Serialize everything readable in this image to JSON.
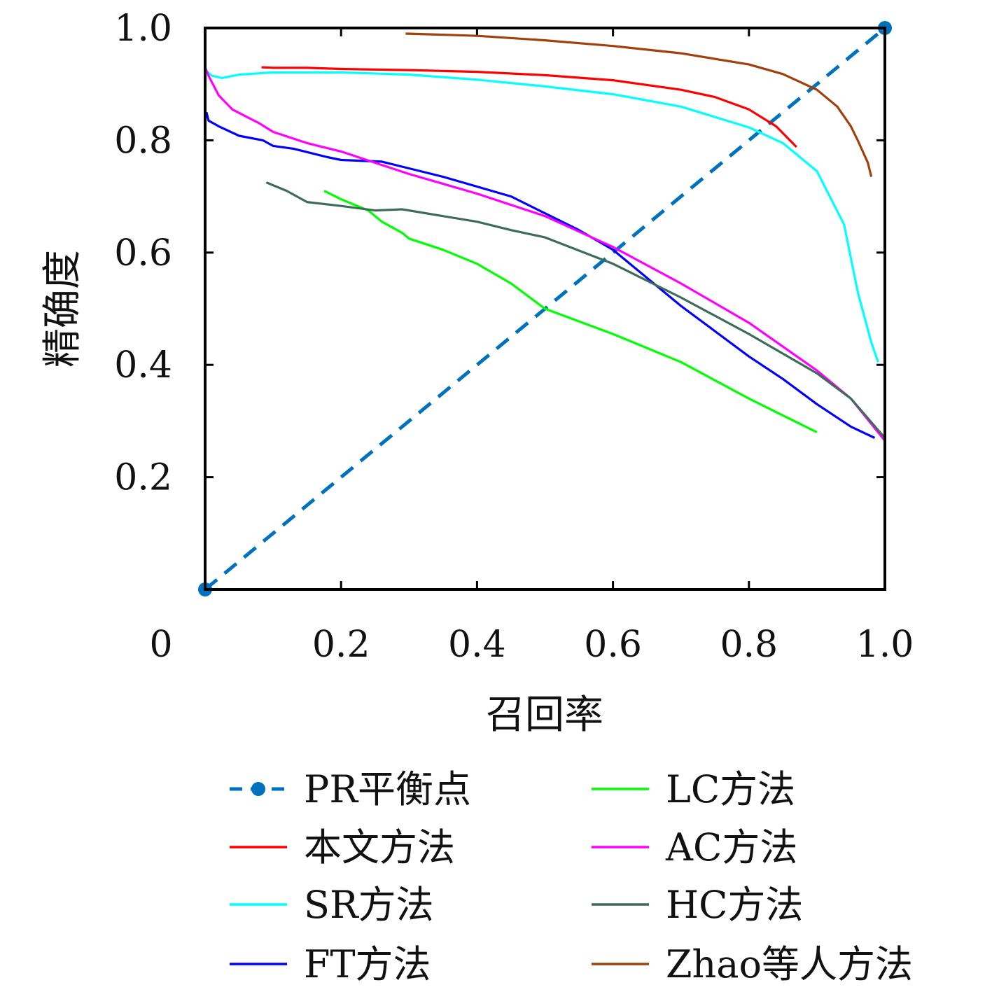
{
  "chart_data": {
    "type": "line",
    "title": "",
    "xlabel": "召回率",
    "ylabel": "精确度",
    "xlim": [
      0,
      1
    ],
    "ylim": [
      0,
      1
    ],
    "x_ticks": [
      {
        "value": 0,
        "label": "0"
      },
      {
        "value": 0.2,
        "label": "0.2"
      },
      {
        "value": 0.4,
        "label": "0.4"
      },
      {
        "value": 0.6,
        "label": "0.6"
      },
      {
        "value": 0.8,
        "label": "0.8"
      },
      {
        "value": 1.0,
        "label": "1.0"
      }
    ],
    "y_ticks": [
      {
        "value": 0.2,
        "label": "0.2"
      },
      {
        "value": 0.4,
        "label": "0.4"
      },
      {
        "value": 0.6,
        "label": "0.6"
      },
      {
        "value": 0.8,
        "label": "0.8"
      },
      {
        "value": 1.0,
        "label": "1.0"
      }
    ],
    "grid": false,
    "legend_position": "bottom",
    "series": [
      {
        "name": "PR平衡点",
        "color": "#0072BD",
        "style": "dashed-marker",
        "x": [
          0,
          1
        ],
        "y": [
          0,
          1
        ]
      },
      {
        "name": "本文方法",
        "color": "#FF0000",
        "style": "solid",
        "x": [
          0.083,
          0.1,
          0.15,
          0.2,
          0.3,
          0.4,
          0.5,
          0.6,
          0.7,
          0.75,
          0.8,
          0.84,
          0.87
        ],
        "y": [
          0.93,
          0.929,
          0.929,
          0.927,
          0.925,
          0.922,
          0.916,
          0.907,
          0.89,
          0.877,
          0.855,
          0.825,
          0.788
        ]
      },
      {
        "name": "SR方法",
        "color": "#00FFFF",
        "style": "solid",
        "x": [
          0.0,
          0.01,
          0.025,
          0.05,
          0.1,
          0.2,
          0.3,
          0.4,
          0.5,
          0.6,
          0.7,
          0.8,
          0.85,
          0.9,
          0.94,
          0.96,
          0.98,
          0.99
        ],
        "y": [
          0.925,
          0.915,
          0.911,
          0.917,
          0.921,
          0.921,
          0.917,
          0.908,
          0.896,
          0.882,
          0.86,
          0.823,
          0.795,
          0.745,
          0.65,
          0.53,
          0.44,
          0.405
        ]
      },
      {
        "name": "FT方法",
        "color": "#0000FF",
        "style": "solid",
        "x": [
          0.002,
          0.005,
          0.02,
          0.05,
          0.085,
          0.1,
          0.13,
          0.18,
          0.2,
          0.26,
          0.3,
          0.35,
          0.45,
          0.5,
          0.55,
          0.6,
          0.65,
          0.7,
          0.75,
          0.8,
          0.85,
          0.9,
          0.95,
          0.985
        ],
        "y": [
          0.85,
          0.835,
          0.825,
          0.808,
          0.8,
          0.79,
          0.785,
          0.77,
          0.765,
          0.762,
          0.75,
          0.735,
          0.7,
          0.67,
          0.64,
          0.605,
          0.555,
          0.505,
          0.46,
          0.415,
          0.375,
          0.33,
          0.29,
          0.27
        ]
      },
      {
        "name": "LC方法",
        "color": "#00FF00",
        "style": "solid",
        "x": [
          0.175,
          0.2,
          0.24,
          0.26,
          0.29,
          0.3,
          0.35,
          0.4,
          0.45,
          0.5,
          0.6,
          0.7,
          0.8,
          0.85,
          0.9
        ],
        "y": [
          0.71,
          0.695,
          0.675,
          0.655,
          0.635,
          0.625,
          0.605,
          0.58,
          0.545,
          0.5,
          0.455,
          0.405,
          0.34,
          0.31,
          0.28
        ]
      },
      {
        "name": "AC方法",
        "color": "#FF00FF",
        "style": "solid",
        "x": [
          0.0,
          0.005,
          0.02,
          0.04,
          0.08,
          0.1,
          0.15,
          0.2,
          0.25,
          0.3,
          0.4,
          0.5,
          0.6,
          0.7,
          0.8,
          0.9,
          0.95,
          1.0
        ],
        "y": [
          0.93,
          0.915,
          0.88,
          0.855,
          0.83,
          0.815,
          0.795,
          0.78,
          0.76,
          0.74,
          0.705,
          0.665,
          0.61,
          0.545,
          0.475,
          0.39,
          0.34,
          0.265
        ]
      },
      {
        "name": "HC方法",
        "color": "#3D6C5A",
        "style": "solid",
        "x": [
          0.09,
          0.12,
          0.15,
          0.2,
          0.25,
          0.29,
          0.35,
          0.4,
          0.45,
          0.5,
          0.6,
          0.7,
          0.8,
          0.9,
          0.95,
          1.0
        ],
        "y": [
          0.725,
          0.71,
          0.69,
          0.683,
          0.675,
          0.677,
          0.665,
          0.655,
          0.64,
          0.627,
          0.58,
          0.52,
          0.455,
          0.385,
          0.34,
          0.27
        ]
      },
      {
        "name": "Zhao等人方法",
        "color": "#A0400A",
        "style": "solid",
        "x": [
          0.295,
          0.35,
          0.4,
          0.5,
          0.6,
          0.7,
          0.8,
          0.85,
          0.9,
          0.93,
          0.95,
          0.96,
          0.975,
          0.98
        ],
        "y": [
          0.99,
          0.988,
          0.986,
          0.978,
          0.968,
          0.955,
          0.935,
          0.918,
          0.89,
          0.86,
          0.825,
          0.8,
          0.76,
          0.735
        ]
      }
    ]
  }
}
